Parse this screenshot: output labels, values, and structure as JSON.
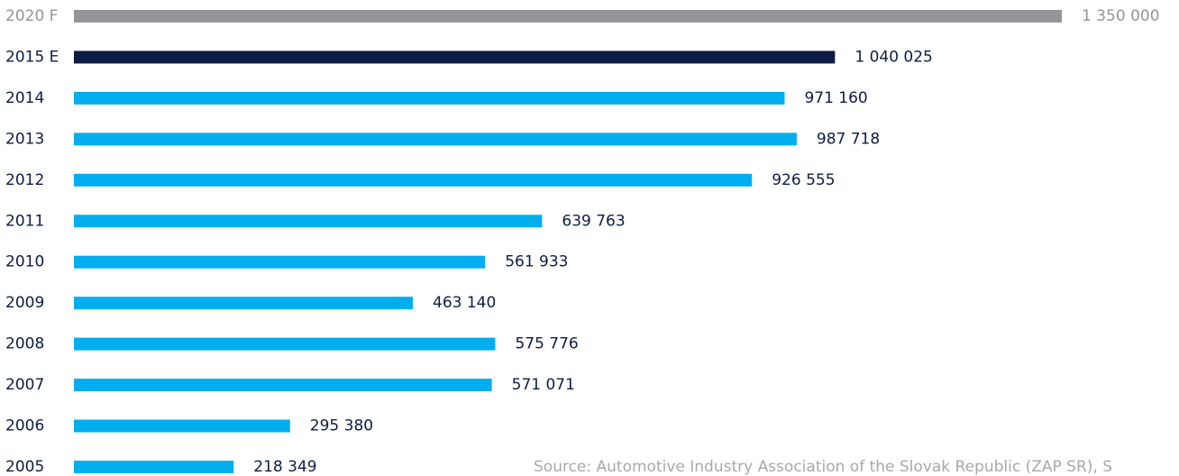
{
  "chart_data": {
    "type": "bar",
    "orientation": "horizontal",
    "categories": [
      "2020 F",
      "2015 E",
      "2014",
      "2013",
      "2012",
      "2011",
      "2010",
      "2009",
      "2008",
      "2007",
      "2006",
      "2005"
    ],
    "values": [
      1350000,
      1040025,
      971160,
      987718,
      926555,
      639763,
      561933,
      463140,
      575776,
      571071,
      295380,
      218349
    ],
    "value_labels": [
      "1 350 000",
      "1 040 025",
      "971 160",
      "987 718",
      "926 555",
      "639 763",
      "561 933",
      "463 140",
      "575 776",
      "571 071",
      "295 380",
      "218 349"
    ],
    "colors": [
      "#939598",
      "#0e1c45",
      "#00aeef",
      "#00aeef",
      "#00aeef",
      "#00aeef",
      "#00aeef",
      "#00aeef",
      "#00aeef",
      "#00aeef",
      "#00aeef",
      "#00aeef"
    ],
    "source": "Source: Automotive Industry Association of the Slovak Republic (ZAP SR), S"
  }
}
